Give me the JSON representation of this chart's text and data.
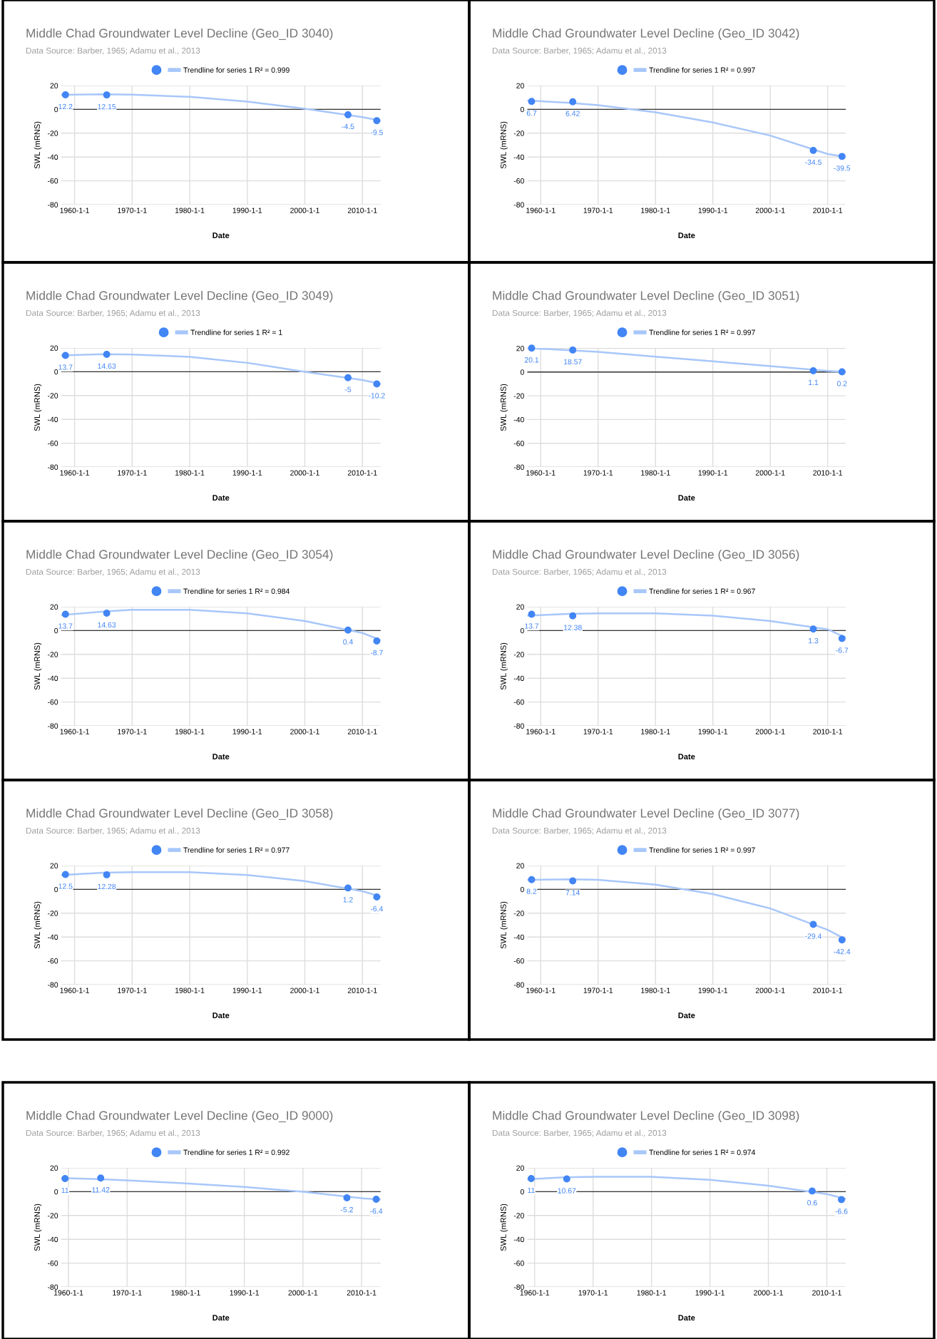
{
  "chart_data": [
    {
      "type": "scatter",
      "title": "Middle Chad Groundwater Level Decline (Geo_ID 3040)",
      "subtitle": "Data Source: Barber, 1965; Adamu et al., 2013",
      "xlabel": "Date",
      "ylabel": "SWL (mRNS)",
      "x": [
        "1958-06",
        "1965-08",
        "2007-07",
        "2012-07"
      ],
      "series": [
        {
          "color": "#4285f4",
          "marker": "circle",
          "values": [
            12.2,
            12.15,
            -4.5,
            -9.5
          ],
          "value_labels": [
            "12.2",
            "12.15",
            "-4.5",
            "-9.5"
          ]
        },
        {
          "type": "line",
          "name": "Trendline for series 1 R² = 0.999",
          "color": "#a8c7fa",
          "x": [
            "1957-09",
            "1965-01",
            "1970-01",
            "1980-01",
            "1990-01",
            "2000-01",
            "2010-01",
            "2013-03"
          ],
          "values": [
            12.2,
            12.6,
            12.3,
            10.5,
            6.5,
            0.5,
            -6.5,
            -9.5
          ]
        }
      ],
      "xlim": [
        "1957-09",
        "2013-03"
      ],
      "xticks": [
        {
          "value": "1960-01-01",
          "label": "1960-1-1"
        },
        {
          "value": "1970-01-01",
          "label": "1970-1-1"
        },
        {
          "value": "1980-01-01",
          "label": "1980-1-1"
        },
        {
          "value": "1990-01-01",
          "label": "1990-1-1"
        },
        {
          "value": "2000-01-01",
          "label": "2000-1-1"
        },
        {
          "value": "2010-01-01",
          "label": "2010-1-1"
        }
      ],
      "ylim": [
        -80,
        20
      ],
      "yticks": [
        -80,
        -60,
        -40,
        -20,
        0,
        20
      ],
      "grid": true,
      "legend": "top",
      "ref_lines": [
        {
          "axis": "y",
          "value": 0,
          "color": "#333333"
        }
      ]
    },
    {
      "type": "scatter",
      "title": "Middle Chad Groundwater Level Decline (Geo_ID 3042)",
      "subtitle": "Data Source: Barber, 1965; Adamu et al., 2013",
      "xlabel": "Date",
      "ylabel": "SWL (mRNS)",
      "x": [
        "1958-06",
        "1965-08",
        "2007-07",
        "2012-07"
      ],
      "series": [
        {
          "color": "#4285f4",
          "marker": "circle",
          "values": [
            6.7,
            6.42,
            -34.5,
            -39.5
          ],
          "value_labels": [
            "6.7",
            "6.42",
            "-34.5",
            "-39.5"
          ]
        },
        {
          "type": "line",
          "name": "Trendline for series 1 R² = 0.997",
          "color": "#a8c7fa",
          "x": [
            "1957-09",
            "1965-01",
            "1970-01",
            "1980-01",
            "1990-01",
            "2000-01",
            "2010-01",
            "2013-03"
          ],
          "values": [
            7.5,
            5.5,
            3.5,
            -2.5,
            -11,
            -22,
            -37.5,
            -40
          ]
        }
      ],
      "xlim": [
        "1957-09",
        "2013-03"
      ],
      "xticks": [
        {
          "value": "1960-01-01",
          "label": "1960-1-1"
        },
        {
          "value": "1970-01-01",
          "label": "1970-1-1"
        },
        {
          "value": "1980-01-01",
          "label": "1980-1-1"
        },
        {
          "value": "1990-01-01",
          "label": "1990-1-1"
        },
        {
          "value": "2000-01-01",
          "label": "2000-1-1"
        },
        {
          "value": "2010-01-01",
          "label": "2010-1-1"
        }
      ],
      "ylim": [
        -80,
        20
      ],
      "yticks": [
        -80,
        -60,
        -40,
        -20,
        0,
        20
      ],
      "grid": true,
      "legend": "top",
      "ref_lines": [
        {
          "axis": "y",
          "value": 0,
          "color": "#333333"
        }
      ]
    },
    {
      "type": "scatter",
      "title": "Middle Chad Groundwater Level Decline (Geo_ID 3049)",
      "subtitle": "Data Source: Barber, 1965; Adamu et al., 2013",
      "xlabel": "Date",
      "ylabel": "SWL (mRNS)",
      "x": [
        "1958-06",
        "1965-08",
        "2007-07",
        "2012-07"
      ],
      "series": [
        {
          "color": "#4285f4",
          "marker": "circle",
          "values": [
            13.7,
            14.63,
            -5,
            -10.2
          ],
          "value_labels": [
            "13.7",
            "14.63",
            "-5",
            "-10.2"
          ]
        },
        {
          "type": "line",
          "name": "Trendline for series 1 R² = 1",
          "color": "#a8c7fa",
          "x": [
            "1957-09",
            "1965-01",
            "1970-01",
            "1980-01",
            "1990-01",
            "2000-01",
            "2010-01",
            "2013-03"
          ],
          "values": [
            13.7,
            14.7,
            14.5,
            12.5,
            7.5,
            0,
            -7,
            -10.2
          ]
        }
      ],
      "xlim": [
        "1957-09",
        "2013-03"
      ],
      "xticks": [
        {
          "value": "1960-01-01",
          "label": "1960-1-1"
        },
        {
          "value": "1970-01-01",
          "label": "1970-1-1"
        },
        {
          "value": "1980-01-01",
          "label": "1980-1-1"
        },
        {
          "value": "1990-01-01",
          "label": "1990-1-1"
        },
        {
          "value": "2000-01-01",
          "label": "2000-1-1"
        },
        {
          "value": "2010-01-01",
          "label": "2010-1-1"
        }
      ],
      "ylim": [
        -80,
        20
      ],
      "yticks": [
        -80,
        -60,
        -40,
        -20,
        0,
        20
      ],
      "grid": true,
      "legend": "top",
      "ref_lines": [
        {
          "axis": "y",
          "value": 0,
          "color": "#333333"
        }
      ]
    },
    {
      "type": "scatter",
      "title": "Middle Chad Groundwater Level Decline (Geo_ID 3051)",
      "subtitle": "Data Source: Barber, 1965; Adamu et al., 2013",
      "xlabel": "Date",
      "ylabel": "SWL (mRNS)",
      "x": [
        "1958-06",
        "1965-08",
        "2007-07",
        "2012-07"
      ],
      "series": [
        {
          "color": "#4285f4",
          "marker": "circle",
          "values": [
            20.1,
            18.57,
            1.1,
            0.2
          ],
          "value_labels": [
            "20.1",
            "18.57",
            "1.1",
            "0.2"
          ]
        },
        {
          "type": "line",
          "name": "Trendline for series 1 R² = 0.997",
          "color": "#a8c7fa",
          "x": [
            "1957-09",
            "1965-01",
            "1970-01",
            "1980-01",
            "1990-01",
            "2000-01",
            "2010-01",
            "2013-03"
          ],
          "values": [
            20.2,
            18.4,
            17,
            13,
            9,
            5,
            1,
            0
          ]
        }
      ],
      "xlim": [
        "1957-09",
        "2013-03"
      ],
      "xticks": [
        {
          "value": "1960-01-01",
          "label": "1960-1-1"
        },
        {
          "value": "1970-01-01",
          "label": "1970-1-1"
        },
        {
          "value": "1980-01-01",
          "label": "1980-1-1"
        },
        {
          "value": "1990-01-01",
          "label": "1990-1-1"
        },
        {
          "value": "2000-01-01",
          "label": "2000-1-1"
        },
        {
          "value": "2010-01-01",
          "label": "2010-1-1"
        }
      ],
      "ylim": [
        -80,
        20.3
      ],
      "yticks": [
        -80,
        -60,
        -40,
        -20,
        0,
        20
      ],
      "grid": true,
      "legend": "top",
      "ref_lines": [
        {
          "axis": "y",
          "value": 0,
          "color": "#333333"
        }
      ]
    },
    {
      "type": "scatter",
      "title": "Middle Chad Groundwater Level Decline (Geo_ID 3054)",
      "subtitle": "Data Source: Barber, 1965; Adamu et al., 2013",
      "xlabel": "Date",
      "ylabel": "SWL (mRNS)",
      "x": [
        "1958-06",
        "1965-08",
        "2007-07",
        "2012-07"
      ],
      "series": [
        {
          "color": "#4285f4",
          "marker": "circle",
          "values": [
            13.7,
            14.63,
            0.4,
            -8.7
          ],
          "value_labels": [
            "13.7",
            "14.63",
            "0.4",
            "-8.7"
          ]
        },
        {
          "type": "line",
          "name": "Trendline for series 1 R² = 0.984",
          "color": "#a8c7fa",
          "x": [
            "1957-09",
            "1965-01",
            "1970-01",
            "1980-01",
            "1990-01",
            "2000-01",
            "2010-01",
            "2013-03"
          ],
          "values": [
            13,
            16,
            17.5,
            17.5,
            14.5,
            8,
            -2,
            -8
          ]
        }
      ],
      "xlim": [
        "1957-09",
        "2013-03"
      ],
      "xticks": [
        {
          "value": "1960-01-01",
          "label": "1960-1-1"
        },
        {
          "value": "1970-01-01",
          "label": "1970-1-1"
        },
        {
          "value": "1980-01-01",
          "label": "1980-1-1"
        },
        {
          "value": "1990-01-01",
          "label": "1990-1-1"
        },
        {
          "value": "2000-01-01",
          "label": "2000-1-1"
        },
        {
          "value": "2010-01-01",
          "label": "2010-1-1"
        }
      ],
      "ylim": [
        -80,
        20
      ],
      "yticks": [
        -80,
        -60,
        -40,
        -20,
        0,
        20
      ],
      "grid": true,
      "legend": "top",
      "ref_lines": [
        {
          "axis": "y",
          "value": 0,
          "color": "#333333"
        }
      ]
    },
    {
      "type": "scatter",
      "title": "Middle Chad Groundwater Level Decline (Geo_ID 3056)",
      "subtitle": "Data Source: Barber, 1965; Adamu et al., 2013",
      "xlabel": "Date",
      "ylabel": "SWL (mRNS)",
      "x": [
        "1958-06",
        "1965-08",
        "2007-07",
        "2012-07"
      ],
      "series": [
        {
          "color": "#4285f4",
          "marker": "circle",
          "values": [
            13.7,
            12.38,
            1.3,
            -6.7
          ],
          "value_labels": [
            "13.7",
            "12.38",
            "1.3",
            "-6.7"
          ]
        },
        {
          "type": "line",
          "name": "Trendline for series 1 R² = 0.967",
          "color": "#a8c7fa",
          "x": [
            "1957-09",
            "1965-01",
            "1970-01",
            "1980-01",
            "1990-01",
            "2000-01",
            "2010-01",
            "2013-03"
          ],
          "values": [
            12.5,
            14,
            14.5,
            14.5,
            12.5,
            8,
            1,
            -6
          ]
        }
      ],
      "xlim": [
        "1957-09",
        "2013-03"
      ],
      "xticks": [
        {
          "value": "1960-01-01",
          "label": "1960-1-1"
        },
        {
          "value": "1970-01-01",
          "label": "1970-1-1"
        },
        {
          "value": "1980-01-01",
          "label": "1980-1-1"
        },
        {
          "value": "1990-01-01",
          "label": "1990-1-1"
        },
        {
          "value": "2000-01-01",
          "label": "2000-1-1"
        },
        {
          "value": "2010-01-01",
          "label": "2010-1-1"
        }
      ],
      "ylim": [
        -80,
        20
      ],
      "yticks": [
        -80,
        -60,
        -40,
        -20,
        0,
        20
      ],
      "grid": true,
      "legend": "top",
      "ref_lines": [
        {
          "axis": "y",
          "value": 0,
          "color": "#333333"
        }
      ]
    },
    {
      "type": "scatter",
      "title": "Middle Chad Groundwater Level Decline (Geo_ID 3058)",
      "subtitle": "Data Source: Barber, 1965; Adamu et al., 2013",
      "xlabel": "Date",
      "ylabel": "SWL (mRNS)",
      "x": [
        "1958-06",
        "1965-08",
        "2007-07",
        "2012-07"
      ],
      "series": [
        {
          "color": "#4285f4",
          "marker": "circle",
          "values": [
            12.5,
            12.28,
            1.2,
            -6.4
          ],
          "value_labels": [
            "12.5",
            "12.28",
            "1.2",
            "-6.4"
          ]
        },
        {
          "type": "line",
          "name": "Trendline for series 1 R² = 0.977",
          "color": "#a8c7fa",
          "x": [
            "1957-09",
            "1965-01",
            "1970-01",
            "1980-01",
            "1990-01",
            "2000-01",
            "2010-01",
            "2013-03"
          ],
          "values": [
            12,
            14,
            14.5,
            14.5,
            12,
            7,
            -1.5,
            -6
          ]
        }
      ],
      "xlim": [
        "1957-09",
        "2013-03"
      ],
      "xticks": [
        {
          "value": "1960-01-01",
          "label": "1960-1-1"
        },
        {
          "value": "1970-01-01",
          "label": "1970-1-1"
        },
        {
          "value": "1980-01-01",
          "label": "1980-1-1"
        },
        {
          "value": "1990-01-01",
          "label": "1990-1-1"
        },
        {
          "value": "2000-01-01",
          "label": "2000-1-1"
        },
        {
          "value": "2010-01-01",
          "label": "2010-1-1"
        }
      ],
      "ylim": [
        -80,
        20
      ],
      "yticks": [
        -80,
        -60,
        -40,
        -20,
        0,
        20
      ],
      "grid": true,
      "legend": "top",
      "ref_lines": [
        {
          "axis": "y",
          "value": 0,
          "color": "#333333"
        }
      ]
    },
    {
      "type": "scatter",
      "title": "Middle Chad Groundwater Level Decline (Geo_ID 3077)",
      "subtitle": "Data Source: Barber, 1965; Adamu et al., 2013",
      "xlabel": "Date",
      "ylabel": "SWL (mRNS)",
      "x": [
        "1958-06",
        "1965-08",
        "2007-07",
        "2012-07"
      ],
      "series": [
        {
          "color": "#4285f4",
          "marker": "circle",
          "values": [
            8.2,
            7.14,
            -29.4,
            -42.4
          ],
          "value_labels": [
            "8.2",
            "7.14",
            "-29.4",
            "-42.4"
          ]
        },
        {
          "type": "line",
          "name": "Trendline for series 1 R² = 0.997",
          "color": "#a8c7fa",
          "x": [
            "1957-09",
            "1965-01",
            "1970-01",
            "1980-01",
            "1990-01",
            "2000-01",
            "2010-01",
            "2013-03"
          ],
          "values": [
            8,
            8.5,
            8,
            4,
            -4,
            -16,
            -34,
            -42
          ]
        }
      ],
      "xlim": [
        "1957-09",
        "2013-03"
      ],
      "xticks": [
        {
          "value": "1960-01-01",
          "label": "1960-1-1"
        },
        {
          "value": "1970-01-01",
          "label": "1970-1-1"
        },
        {
          "value": "1980-01-01",
          "label": "1980-1-1"
        },
        {
          "value": "1990-01-01",
          "label": "1990-1-1"
        },
        {
          "value": "2000-01-01",
          "label": "2000-1-1"
        },
        {
          "value": "2010-01-01",
          "label": "2010-1-1"
        }
      ],
      "ylim": [
        -80,
        20
      ],
      "yticks": [
        -80,
        -60,
        -40,
        -20,
        0,
        20
      ],
      "grid": true,
      "legend": "top",
      "ref_lines": [
        {
          "axis": "y",
          "value": 0,
          "color": "#333333"
        }
      ]
    },
    {
      "type": "scatter",
      "title": "Middle Chad Groundwater Level Decline (Geo_ID 9000)",
      "subtitle": "Data Source: Barber, 1965; Adamu et al., 2013",
      "xlabel": "Date",
      "ylabel": "SWL (mRNS)",
      "x": [
        "1959-06",
        "1965-07",
        "2007-07",
        "2012-07"
      ],
      "series": [
        {
          "color": "#4285f4",
          "marker": "circle",
          "values": [
            11,
            11.42,
            -5.2,
            -6.4
          ],
          "value_labels": [
            "11",
            "11.42",
            "-5.2",
            "-6.4"
          ]
        },
        {
          "type": "line",
          "name": "Trendline for series 1 R² = 0.992",
          "color": "#a8c7fa",
          "x": [
            "1958-10",
            "1965-01",
            "1970-01",
            "1980-01",
            "1990-01",
            "2000-01",
            "2010-01",
            "2013-04"
          ],
          "values": [
            11.5,
            10.5,
            9.5,
            7,
            4,
            0,
            -5.5,
            -6.5
          ]
        }
      ],
      "xlim": [
        "1958-10",
        "2013-04"
      ],
      "xticks": [
        {
          "value": "1960-01-01",
          "label": "1960-1-1"
        },
        {
          "value": "1970-01-01",
          "label": "1970-1-1"
        },
        {
          "value": "1980-01-01",
          "label": "1980-1-1"
        },
        {
          "value": "1990-01-01",
          "label": "1990-1-1"
        },
        {
          "value": "2000-01-01",
          "label": "2000-1-1"
        },
        {
          "value": "2010-01-01",
          "label": "2010-1-1"
        }
      ],
      "ylim": [
        -80,
        20
      ],
      "yticks": [
        -80,
        -60,
        -40,
        -20,
        0,
        20
      ],
      "grid": true,
      "legend": "top",
      "ref_lines": [
        {
          "axis": "y",
          "value": 0,
          "color": "#333333"
        }
      ]
    },
    {
      "type": "scatter",
      "title": "Middle Chad Groundwater Level Decline (Geo_ID 3098)",
      "subtitle": "Data Source: Barber, 1965; Adamu et al., 2013",
      "xlabel": "Date",
      "ylabel": "SWL (mRNS)",
      "x": [
        "1959-06",
        "1965-07",
        "2007-07",
        "2012-07"
      ],
      "series": [
        {
          "color": "#4285f4",
          "marker": "circle",
          "values": [
            11,
            10.67,
            0.6,
            -6.6
          ],
          "value_labels": [
            "11",
            "10.67",
            "0.6",
            "-6.6"
          ]
        },
        {
          "type": "line",
          "name": "Trendline for series 1 R² = 0.974",
          "color": "#a8c7fa",
          "x": [
            "1958-10",
            "1965-01",
            "1970-01",
            "1980-01",
            "1990-01",
            "2000-01",
            "2010-01",
            "2013-04"
          ],
          "values": [
            10.5,
            12,
            12.5,
            12.5,
            10,
            5,
            -2,
            -6
          ]
        }
      ],
      "xlim": [
        "1958-10",
        "2013-04"
      ],
      "xticks": [
        {
          "value": "1960-01-01",
          "label": "1960-1-1"
        },
        {
          "value": "1970-01-01",
          "label": "1970-1-1"
        },
        {
          "value": "1980-01-01",
          "label": "1980-1-1"
        },
        {
          "value": "1990-01-01",
          "label": "1990-1-1"
        },
        {
          "value": "2000-01-01",
          "label": "2000-1-1"
        },
        {
          "value": "2010-01-01",
          "label": "2010-1-1"
        }
      ],
      "ylim": [
        -80,
        20
      ],
      "yticks": [
        -80,
        -60,
        -40,
        -20,
        0,
        20
      ],
      "grid": true,
      "legend": "top",
      "ref_lines": [
        {
          "axis": "y",
          "value": 0,
          "color": "#333333"
        }
      ]
    }
  ]
}
